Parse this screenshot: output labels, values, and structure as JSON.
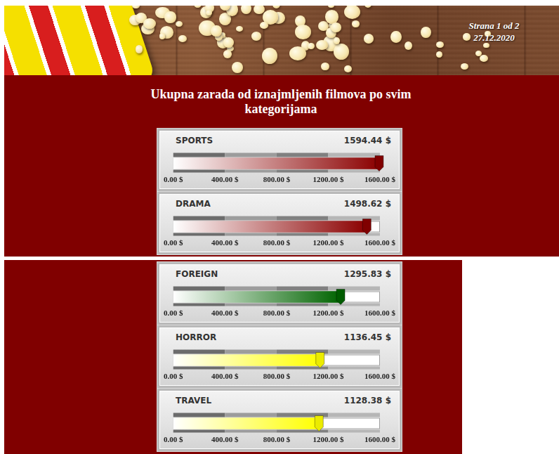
{
  "page": {
    "label": "Strana 1 od 2",
    "date": "27.12.2020"
  },
  "chart_data": {
    "type": "bar",
    "orientation": "horizontal",
    "title": "Ukupna zarada od iznajmljenih filmova po svim kategorijama",
    "categories": [
      "SPORTS",
      "DRAMA",
      "FOREIGN",
      "HORROR",
      "TRAVEL"
    ],
    "values": [
      1594.44,
      1498.62,
      1295.83,
      1136.45,
      1128.38
    ],
    "value_labels": [
      "1594.44 $",
      "1498.62 $",
      "1295.83 $",
      "1136.45 $",
      "1128.38 $"
    ],
    "data_labels": true,
    "colors": [
      "#8b0000",
      "#8b0000",
      "#006400",
      "#ffff00",
      "#ffff00"
    ],
    "xlim": [
      0,
      1600
    ],
    "xticks": [
      {
        "value": 0,
        "label": "0.00 $"
      },
      {
        "value": 400,
        "label": "400.00 $"
      },
      {
        "value": 800,
        "label": "800.00 $"
      },
      {
        "value": 1200,
        "label": "1200.00 $"
      },
      {
        "value": 1600,
        "label": "1600.00 $"
      }
    ],
    "grid": false
  }
}
